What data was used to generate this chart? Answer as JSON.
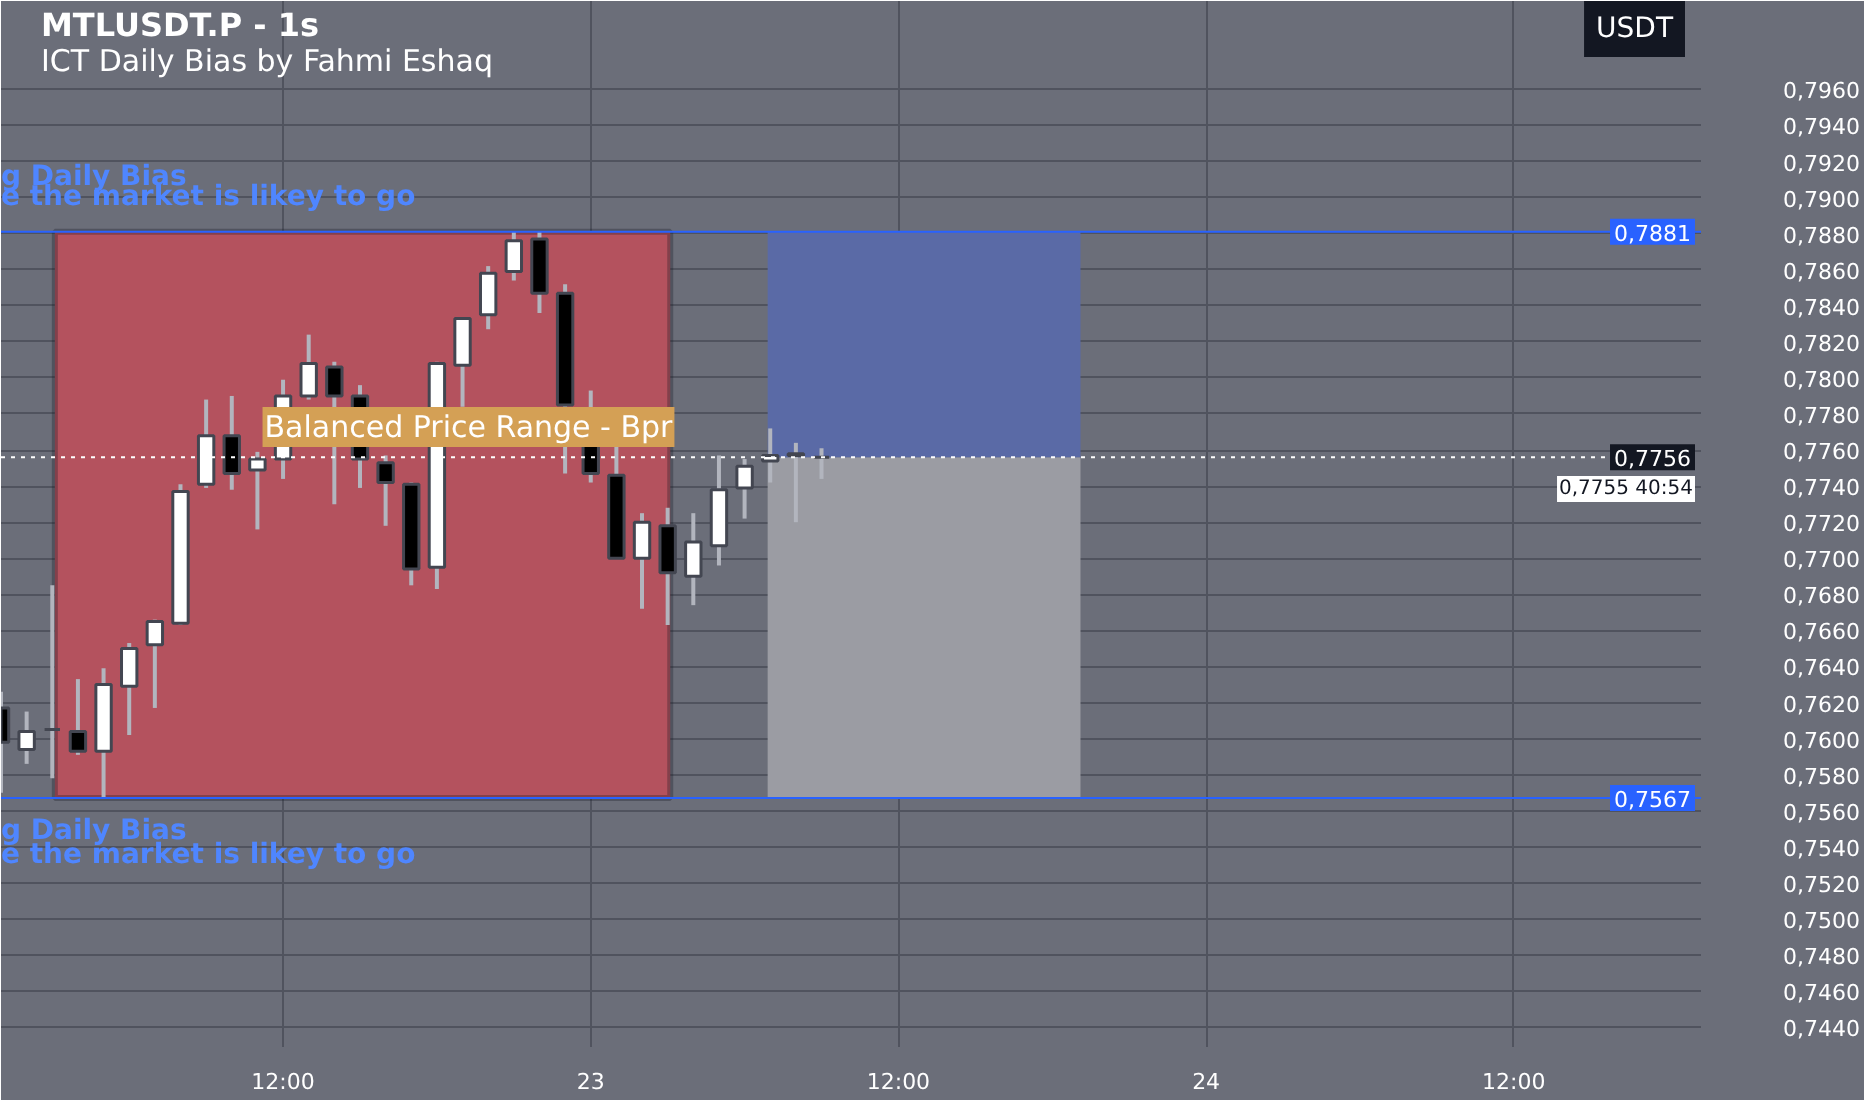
{
  "chart_data": {
    "type": "candlestick",
    "title": "MTLUSDT.P - 1s",
    "subtitle": "ICT Daily Bias by Fahmi Eshaq",
    "ylabel": "USDT",
    "categories": [
      null,
      null,
      null,
      null,
      null,
      null,
      null,
      null,
      null,
      null,
      null,
      "12:00",
      null,
      null,
      null,
      null,
      null,
      null,
      null,
      null,
      null,
      null,
      null,
      "23",
      null,
      null,
      null,
      null,
      null,
      null,
      null,
      null,
      null,
      null,
      null,
      "12:00",
      null,
      null,
      null,
      null,
      null,
      null,
      null,
      null,
      null,
      null,
      null,
      "24",
      null,
      null,
      null,
      null,
      null,
      null,
      null,
      null,
      null,
      null,
      null,
      "12:00",
      null,
      null,
      null,
      null,
      null,
      null,
      null
    ],
    "ohlc": [
      [
        0.7617,
        0.7626,
        0.757,
        0.7598
      ],
      [
        0.7594,
        0.7615,
        0.7586,
        0.7604
      ],
      [
        0.7605,
        0.7685,
        0.7578,
        0.7605
      ],
      [
        0.7604,
        0.7633,
        0.7591,
        0.7593
      ],
      [
        0.7593,
        0.7639,
        0.7567,
        0.763
      ],
      [
        0.7629,
        0.7653,
        0.7602,
        0.765
      ],
      [
        0.7652,
        0.7666,
        0.7617,
        0.7665
      ],
      [
        0.7664,
        0.7741,
        0.7663,
        0.7737
      ],
      [
        0.7741,
        0.7788,
        0.7739,
        0.7768
      ],
      [
        0.7768,
        0.779,
        0.7738,
        0.7747
      ],
      [
        0.7749,
        0.7759,
        0.7716,
        0.7755
      ],
      [
        0.7755,
        0.7799,
        0.7744,
        0.779
      ],
      [
        0.779,
        0.7824,
        0.7788,
        0.7808
      ],
      [
        0.7806,
        0.7809,
        0.773,
        0.779
      ],
      [
        0.779,
        0.7796,
        0.7739,
        0.7755
      ],
      [
        0.7753,
        0.7757,
        0.7718,
        0.7742
      ],
      [
        0.7741,
        0.7742,
        0.7685,
        0.7694
      ],
      [
        0.7695,
        0.7809,
        0.7683,
        0.7808
      ],
      [
        0.7807,
        0.7833,
        0.7784,
        0.7833
      ],
      [
        0.7835,
        0.7862,
        0.7827,
        0.7858
      ],
      [
        0.7859,
        0.7881,
        0.7854,
        0.7876
      ],
      [
        0.7877,
        0.7881,
        0.7836,
        0.7847
      ],
      [
        0.7847,
        0.7852,
        0.7747,
        0.7785
      ],
      [
        0.7783,
        0.7793,
        0.7742,
        0.7747
      ],
      [
        0.7746,
        0.7762,
        0.77,
        0.77
      ],
      [
        0.77,
        0.7725,
        0.7672,
        0.772
      ],
      [
        0.7718,
        0.7728,
        0.7663,
        0.7692
      ],
      [
        0.769,
        0.7725,
        0.7674,
        0.7709
      ],
      [
        0.7707,
        0.7757,
        0.7696,
        0.7738
      ],
      [
        0.7739,
        0.7755,
        0.7722,
        0.7751
      ],
      [
        0.7754,
        0.7772,
        0.7742,
        0.7757
      ],
      [
        0.7757,
        0.7764,
        0.772,
        0.7758
      ],
      [
        0.7756,
        0.7761,
        0.7744,
        0.7756
      ],
      null,
      null,
      null,
      null,
      null,
      null,
      null,
      null,
      null,
      null,
      null,
      null,
      null,
      null,
      null,
      null,
      null,
      null,
      null,
      null,
      null,
      null,
      null,
      null,
      null,
      null,
      null,
      null,
      null,
      null,
      null,
      null,
      null,
      null
    ],
    "ylim": [
      0.7429,
      0.8009
    ],
    "yticks": [
      {
        "value": 0.744,
        "label": "0,7440"
      },
      {
        "value": 0.746,
        "label": "0,7460"
      },
      {
        "value": 0.748,
        "label": "0,7480"
      },
      {
        "value": 0.75,
        "label": "0,7500"
      },
      {
        "value": 0.752,
        "label": "0,7520"
      },
      {
        "value": 0.754,
        "label": "0,7540"
      },
      {
        "value": 0.756,
        "label": "0,7560"
      },
      {
        "value": 0.758,
        "label": "0,7580"
      },
      {
        "value": 0.76,
        "label": "0,7600"
      },
      {
        "value": 0.762,
        "label": "0,7620"
      },
      {
        "value": 0.764,
        "label": "0,7640"
      },
      {
        "value": 0.766,
        "label": "0,7660"
      },
      {
        "value": 0.768,
        "label": "0,7680"
      },
      {
        "value": 0.77,
        "label": "0,7700"
      },
      {
        "value": 0.772,
        "label": "0,7720"
      },
      {
        "value": 0.774,
        "label": "0,7740"
      },
      {
        "value": 0.776,
        "label": "0,7760"
      },
      {
        "value": 0.778,
        "label": "0,7780"
      },
      {
        "value": 0.78,
        "label": "0,7800"
      },
      {
        "value": 0.782,
        "label": "0,7820"
      },
      {
        "value": 0.784,
        "label": "0,7840"
      },
      {
        "value": 0.786,
        "label": "0,7860"
      },
      {
        "value": 0.788,
        "label": "0,7880"
      },
      {
        "value": 0.79,
        "label": "0,7900"
      },
      {
        "value": 0.792,
        "label": "0,7920"
      },
      {
        "value": 0.794,
        "label": "0,7940"
      },
      {
        "value": 0.796,
        "label": "0,7960"
      }
    ],
    "grid": true,
    "ref_lines": [
      {
        "axis": "y",
        "value": 0.7881,
        "label": "0,7881",
        "color": "#2962ff",
        "line_style": "solid"
      },
      {
        "axis": "y",
        "value": 0.7567,
        "label": "0,7567",
        "color": "#2962ff",
        "line_style": "solid"
      },
      {
        "axis": "y",
        "value": 0.7756,
        "label": "0,7756",
        "color": "#ffffff",
        "line_style": "dotted"
      }
    ],
    "bands": [
      {
        "axis": "y",
        "from": 0.7567,
        "to": 0.7881,
        "color": "#b4525e"
      },
      {
        "axis": "y",
        "from": 0.7567,
        "to": 0.7756,
        "color": "#9b9ca3"
      },
      {
        "axis": "y",
        "from": 0.7756,
        "to": 0.7881,
        "color": "#5a6aa6"
      }
    ],
    "annotations": [
      "g Daily Bias",
      "e the market is likey to go",
      "g Daily Bias",
      "e the market is likey to go",
      "Balanced Price Range - Bpr",
      "0,7755 40:54"
    ]
  }
}
